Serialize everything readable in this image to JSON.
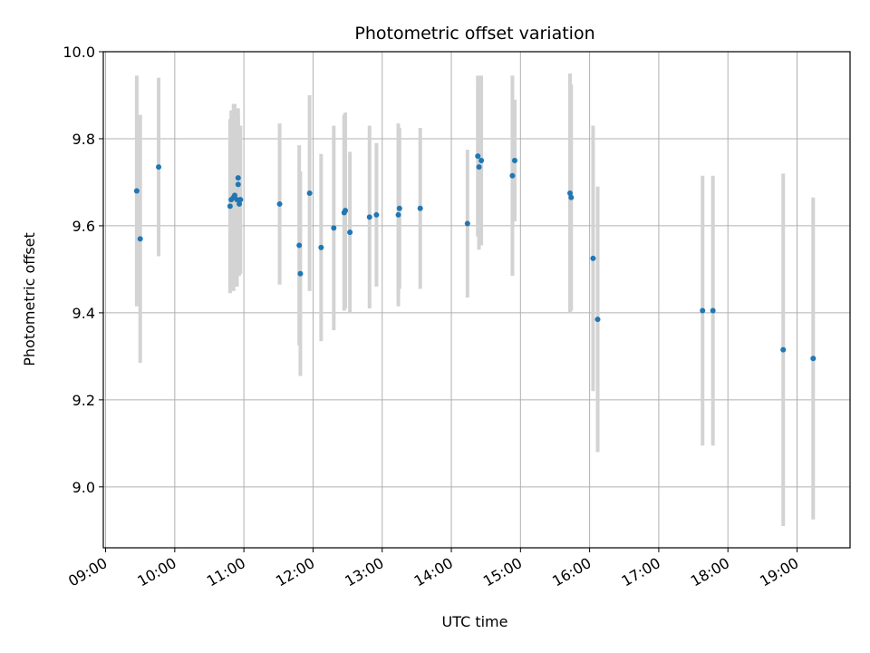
{
  "chart_data": {
    "type": "scatter",
    "title": "Photometric offset variation",
    "xlabel": "UTC time",
    "ylabel": "Photometric offset",
    "x_ticks": [
      "09:00",
      "10:00",
      "11:00",
      "12:00",
      "13:00",
      "14:00",
      "15:00",
      "16:00",
      "17:00",
      "18:00",
      "19:00"
    ],
    "y_ticks": [
      "9.0",
      "9.2",
      "9.4",
      "9.6",
      "9.8",
      "10.0"
    ],
    "xlim": [
      "08:58",
      "19:46"
    ],
    "ylim": [
      8.86,
      10.0
    ],
    "grid": true,
    "error_bar_color": "#d3d3d3",
    "point_color": "#1f77b4",
    "points": [
      {
        "x": "09:27",
        "y": 9.68,
        "err": 0.265
      },
      {
        "x": "09:30",
        "y": 9.57,
        "err": 0.285
      },
      {
        "x": "09:46",
        "y": 9.735,
        "err": 0.205
      },
      {
        "x": "10:48",
        "y": 9.645,
        "err": 0.2
      },
      {
        "x": "10:49",
        "y": 9.66,
        "err": 0.205
      },
      {
        "x": "10:51",
        "y": 9.665,
        "err": 0.215
      },
      {
        "x": "10:52",
        "y": 9.67,
        "err": 0.21
      },
      {
        "x": "10:54",
        "y": 9.66,
        "err": 0.2
      },
      {
        "x": "10:55",
        "y": 9.71,
        "err": 0.16
      },
      {
        "x": "10:55",
        "y": 9.695,
        "err": 0.155
      },
      {
        "x": "10:56",
        "y": 9.65,
        "err": 0.165
      },
      {
        "x": "10:57",
        "y": 9.66,
        "err": 0.17
      },
      {
        "x": "11:31",
        "y": 9.65,
        "err": 0.185
      },
      {
        "x": "11:48",
        "y": 9.555,
        "err": 0.23
      },
      {
        "x": "11:49",
        "y": 9.49,
        "err": 0.235
      },
      {
        "x": "11:57",
        "y": 9.675,
        "err": 0.225
      },
      {
        "x": "12:07",
        "y": 9.55,
        "err": 0.215
      },
      {
        "x": "12:18",
        "y": 9.595,
        "err": 0.235
      },
      {
        "x": "12:27",
        "y": 9.63,
        "err": 0.225
      },
      {
        "x": "12:28",
        "y": 9.635,
        "err": 0.225
      },
      {
        "x": "12:32",
        "y": 9.585,
        "err": 0.185
      },
      {
        "x": "12:49",
        "y": 9.62,
        "err": 0.21
      },
      {
        "x": "12:55",
        "y": 9.625,
        "err": 0.165
      },
      {
        "x": "13:14",
        "y": 9.625,
        "err": 0.21
      },
      {
        "x": "13:15",
        "y": 9.64,
        "err": 0.185
      },
      {
        "x": "13:33",
        "y": 9.64,
        "err": 0.185
      },
      {
        "x": "14:14",
        "y": 9.605,
        "err": 0.17
      },
      {
        "x": "14:23",
        "y": 9.76,
        "err": 0.185
      },
      {
        "x": "14:24",
        "y": 9.735,
        "err": 0.19
      },
      {
        "x": "14:26",
        "y": 9.75,
        "err": 0.195
      },
      {
        "x": "14:53",
        "y": 9.715,
        "err": 0.23
      },
      {
        "x": "14:55",
        "y": 9.75,
        "err": 0.14
      },
      {
        "x": "15:43",
        "y": 9.675,
        "err": 0.275
      },
      {
        "x": "15:44",
        "y": 9.665,
        "err": 0.26
      },
      {
        "x": "16:03",
        "y": 9.525,
        "err": 0.305
      },
      {
        "x": "16:07",
        "y": 9.385,
        "err": 0.305
      },
      {
        "x": "17:38",
        "y": 9.405,
        "err": 0.31
      },
      {
        "x": "17:47",
        "y": 9.405,
        "err": 0.31
      },
      {
        "x": "18:48",
        "y": 9.315,
        "err": 0.405
      },
      {
        "x": "19:14",
        "y": 9.295,
        "err": 0.37
      }
    ]
  }
}
